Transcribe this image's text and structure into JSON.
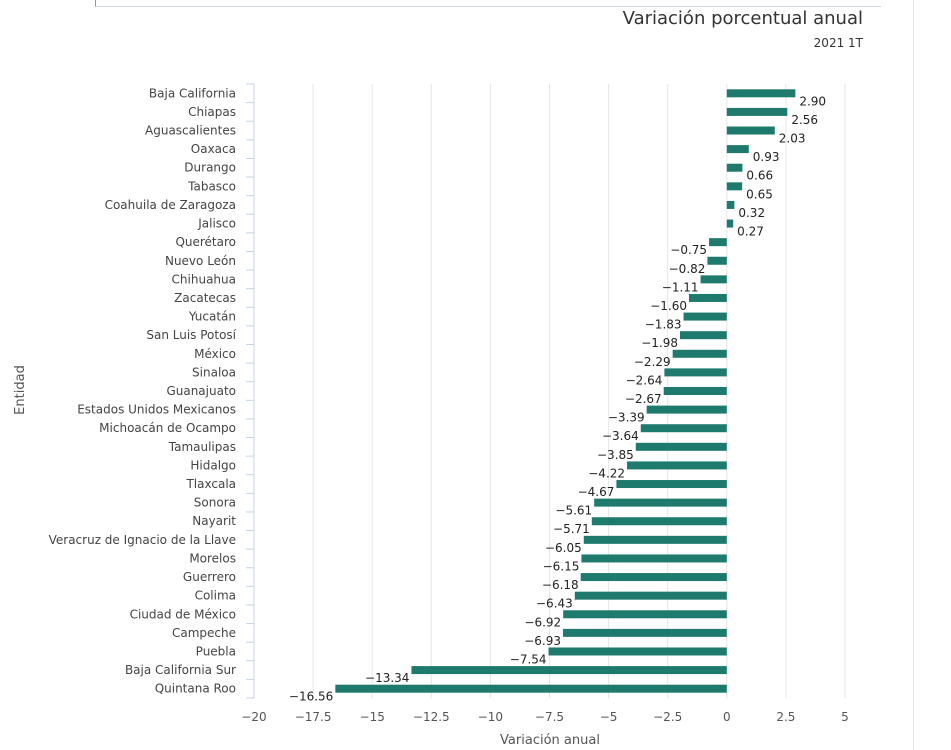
{
  "chart_data": {
    "type": "bar",
    "orientation": "horizontal",
    "title": "Variación porcentual anual",
    "subtitle": "2021 1T",
    "xlabel": "Variación anual",
    "ylabel": "Entidad",
    "xlim": [
      -20,
      5
    ],
    "xticks": [
      -20,
      -17.5,
      -15,
      -12.5,
      -10,
      -7.5,
      -5,
      -2.5,
      0,
      2.5,
      5
    ],
    "xtick_labels": [
      "−20",
      "−17.5",
      "−15",
      "−12.5",
      "−10",
      "−7.5",
      "−5",
      "−2.5",
      "0",
      "2.5",
      "5"
    ],
    "grid": true,
    "bar_color": "#1f7a6e",
    "categories": [
      "Baja California",
      "Chiapas",
      "Aguascalientes",
      "Oaxaca",
      "Durango",
      "Tabasco",
      "Coahuila de Zaragoza",
      "Jalisco",
      "Querétaro",
      "Nuevo León",
      "Chihuahua",
      "Zacatecas",
      "Yucatán",
      "San Luis Potosí",
      "México",
      "Sinaloa",
      "Guanajuato",
      "Estados Unidos Mexicanos",
      "Michoacán de Ocampo",
      "Tamaulipas",
      "Hidalgo",
      "Tlaxcala",
      "Sonora",
      "Nayarit",
      "Veracruz de Ignacio de la Llave",
      "Morelos",
      "Guerrero",
      "Colima",
      "Ciudad de México",
      "Campeche",
      "Puebla",
      "Baja California Sur",
      "Quintana Roo"
    ],
    "values": [
      2.9,
      2.56,
      2.03,
      0.93,
      0.66,
      0.65,
      0.32,
      0.27,
      -0.75,
      -0.82,
      -1.11,
      -1.6,
      -1.83,
      -1.98,
      -2.29,
      -2.64,
      -2.67,
      -3.39,
      -3.64,
      -3.85,
      -4.22,
      -4.67,
      -5.61,
      -5.71,
      -6.05,
      -6.15,
      -6.18,
      -6.43,
      -6.92,
      -6.93,
      -7.54,
      -13.34,
      -16.56
    ],
    "data_labels": [
      "2.90",
      "2.56",
      "2.03",
      "0.93",
      "0.66",
      "0.65",
      "0.32",
      "0.27",
      "−0.75",
      "−0.82",
      "−1.11",
      "−1.60",
      "−1.83",
      "−1.98",
      "−2.29",
      "−2.64",
      "−2.67",
      "−3.39",
      "−3.64",
      "−3.85",
      "−4.22",
      "−4.67",
      "−5.61",
      "−5.71",
      "−6.05",
      "−6.15",
      "−6.18",
      "−6.43",
      "−6.92",
      "−6.93",
      "−7.54",
      "−13.34",
      "−16.56"
    ]
  }
}
